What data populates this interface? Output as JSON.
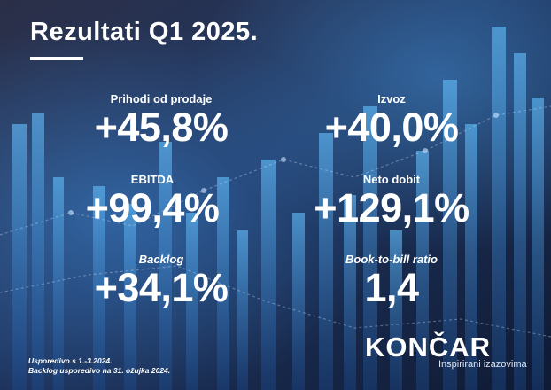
{
  "title": "Rezultati Q1 2025.",
  "metrics": [
    {
      "label": "Prihodi od prodaje",
      "value": "+45,8%"
    },
    {
      "label": "Izvoz",
      "value": "+40,0%"
    },
    {
      "label": "EBITDA",
      "value": "+99,4%"
    },
    {
      "label": "Neto dobit",
      "value": "+129,1%"
    },
    {
      "label": "Backlog",
      "value": "+34,1%"
    },
    {
      "label": "Book-to-bill ratio",
      "value": "1,4"
    }
  ],
  "footnotes": [
    "Usporedivo s 1.-3.2024.",
    "Backlog usporedivo na 31. ožujka 2024."
  ],
  "brand": {
    "logo": "KONČAR",
    "tagline": "Inspirirani izazovima"
  },
  "colors": {
    "background_dark": "#141d36",
    "background_accent": "#2a7fd0",
    "text": "#ffffff"
  }
}
